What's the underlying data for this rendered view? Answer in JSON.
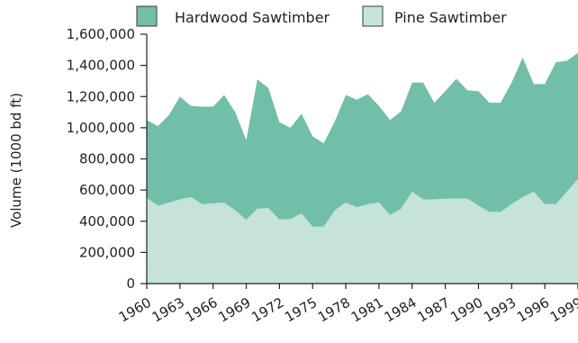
{
  "chart_data": {
    "type": "area",
    "stacked": true,
    "title": "",
    "xlabel": "",
    "ylabel": "Volume (1000 bd ft)",
    "xlim": [
      1960,
      1999
    ],
    "ylim": [
      0,
      1600000
    ],
    "yticks": [
      0,
      200000,
      400000,
      600000,
      800000,
      1000000,
      1200000,
      1400000,
      1600000
    ],
    "ytick_labels": [
      "0",
      "200,000",
      "400,000",
      "600,000",
      "800,000",
      "1,000,000",
      "1,200,000",
      "1,400,000",
      "1,600,000"
    ],
    "xticks": [
      1960,
      1963,
      1966,
      1969,
      1972,
      1975,
      1978,
      1981,
      1984,
      1987,
      1990,
      1993,
      1996,
      1999
    ],
    "xtick_labels": [
      "1960",
      "1963",
      "1966",
      "1969",
      "1972",
      "1975",
      "1978",
      "1981",
      "1984",
      "1987",
      "1990",
      "1993",
      "1996",
      "1999"
    ],
    "grid": false,
    "legend_position": "top",
    "x": [
      1960,
      1961,
      1962,
      1963,
      1964,
      1965,
      1966,
      1967,
      1968,
      1969,
      1970,
      1971,
      1972,
      1973,
      1974,
      1975,
      1976,
      1977,
      1978,
      1979,
      1980,
      1981,
      1982,
      1983,
      1984,
      1985,
      1986,
      1987,
      1988,
      1989,
      1990,
      1991,
      1992,
      1993,
      1994,
      1995,
      1996,
      1997,
      1998,
      1999
    ],
    "series": [
      {
        "name": "Pine Sawtimber",
        "color": "#c5e3d9",
        "values": [
          550000,
          500000,
          520000,
          540000,
          555000,
          510000,
          515000,
          520000,
          470000,
          410000,
          480000,
          485000,
          410000,
          415000,
          450000,
          365000,
          365000,
          470000,
          520000,
          490000,
          510000,
          520000,
          440000,
          480000,
          590000,
          540000,
          540000,
          545000,
          545000,
          545000,
          500000,
          460000,
          460000,
          510000,
          555000,
          590000,
          510000,
          510000,
          590000,
          670000
        ]
      },
      {
        "name": "Hardwood Sawtimber",
        "color": "#72bfa9",
        "values": [
          500000,
          510000,
          560000,
          660000,
          585000,
          625000,
          620000,
          690000,
          630000,
          510000,
          830000,
          770000,
          625000,
          585000,
          640000,
          580000,
          535000,
          570000,
          690000,
          690000,
          705000,
          620000,
          610000,
          625000,
          700000,
          750000,
          620000,
          690000,
          770000,
          695000,
          735000,
          700000,
          700000,
          780000,
          895000,
          690000,
          770000,
          910000,
          840000,
          810000
        ]
      }
    ]
  }
}
